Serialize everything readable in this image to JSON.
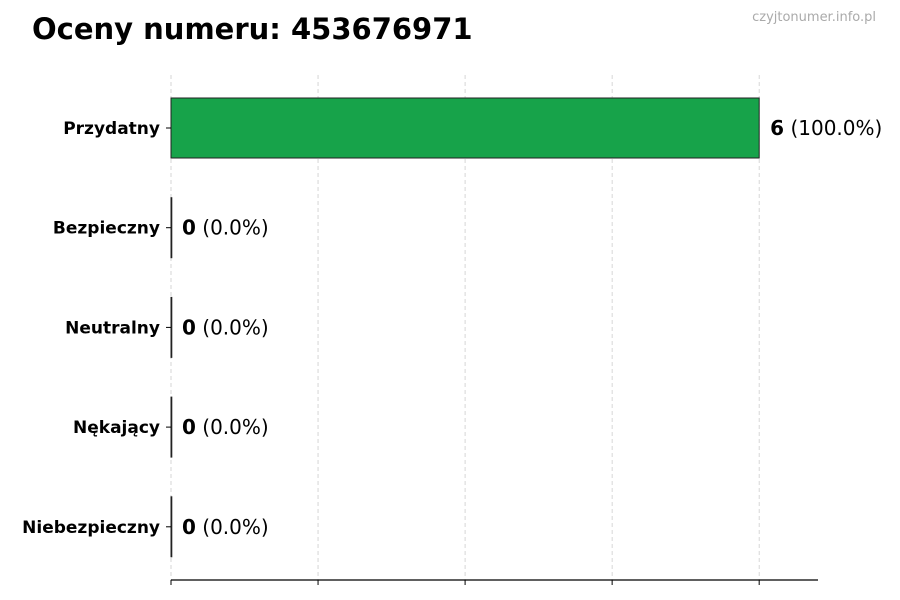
{
  "chart_data": {
    "type": "bar",
    "orientation": "horizontal",
    "title": "Oceny numeru: 453676971",
    "watermark": "czyjtonumer.info.pl",
    "categories": [
      "Przydatny",
      "Bezpieczny",
      "Neutralny",
      "Nękający",
      "Niebezpieczny"
    ],
    "values": [
      6,
      0,
      0,
      0,
      0
    ],
    "value_labels": [
      "6",
      "0",
      "0",
      "0",
      "0"
    ],
    "percent_labels": [
      "(100.0%)",
      "(0.0%)",
      "(0.0%)",
      "(0.0%)",
      "(0.0%)"
    ],
    "bar_colors": [
      "#17a34a",
      "#17a34a",
      "#17a34a",
      "#17a34a",
      "#17a34a"
    ],
    "xlim": [
      0,
      6.6
    ],
    "xticks": [
      0,
      1.5,
      3,
      4.5,
      6
    ],
    "grid": "vertical dashed",
    "xlabel": "",
    "ylabel": ""
  }
}
